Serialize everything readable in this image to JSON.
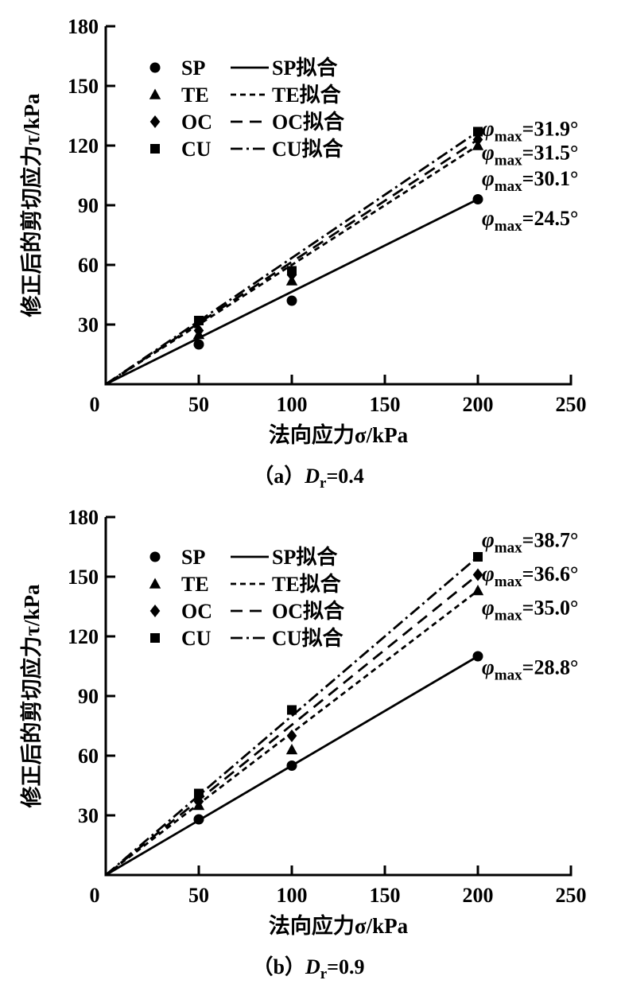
{
  "figure": {
    "background": "#ffffff",
    "ink": "#000000"
  },
  "chart_data": [
    {
      "type": "scatter",
      "panel": "a",
      "caption": {
        "prefix": "（a）",
        "variable": "D",
        "variable_subscript": "r",
        "rest": "=0.4"
      },
      "xlabel": "法向应力σ/kPa",
      "ylabel": "修正后的剪切应力τ/kPa",
      "xlim": [
        0,
        250
      ],
      "ylim": [
        0,
        180
      ],
      "xticks": [
        50,
        100,
        150,
        200,
        250
      ],
      "yticks": [
        30,
        60,
        90,
        120,
        150,
        180
      ],
      "origin_label": "0",
      "grid": false,
      "legend_position": "upper-left-inside",
      "annotation_symbol": "φ",
      "annotation_subscript": "max",
      "series": [
        {
          "name": "SP",
          "fit_label": "SP拟合",
          "marker": "circle",
          "line_style": "solid",
          "points": [
            [
              50,
              20
            ],
            [
              100,
              42
            ],
            [
              200,
              93
            ]
          ],
          "phi_max": "24.5°",
          "annotation_y": 84
        },
        {
          "name": "TE",
          "fit_label": "TE拟合",
          "marker": "triangle",
          "line_style": "short-dash",
          "points": [
            [
              50,
              25
            ],
            [
              100,
              52
            ],
            [
              200,
              120
            ]
          ],
          "phi_max": "30.1°",
          "annotation_y": 104
        },
        {
          "name": "OC",
          "fit_label": "OC拟合",
          "marker": "diamond",
          "line_style": "long-dash",
          "points": [
            [
              50,
              27
            ],
            [
              100,
              55
            ],
            [
              200,
              123
            ]
          ],
          "phi_max": "31.5°",
          "annotation_y": 117
        },
        {
          "name": "CU",
          "fit_label": "CU拟合",
          "marker": "square",
          "line_style": "dash-dot",
          "points": [
            [
              50,
              32
            ],
            [
              100,
              57
            ],
            [
              200,
              127
            ]
          ],
          "phi_max": "31.9°",
          "annotation_y": 129
        }
      ]
    },
    {
      "type": "scatter",
      "panel": "b",
      "caption": {
        "prefix": "（b）",
        "variable": "D",
        "variable_subscript": "r",
        "rest": "=0.9"
      },
      "xlabel": "法向应力σ/kPa",
      "ylabel": "修正后的剪切应力τ/kPa",
      "xlim": [
        0,
        250
      ],
      "ylim": [
        0,
        180
      ],
      "xticks": [
        50,
        100,
        150,
        200,
        250
      ],
      "yticks": [
        30,
        60,
        90,
        120,
        150,
        180
      ],
      "origin_label": "0",
      "grid": false,
      "legend_position": "upper-left-inside",
      "annotation_symbol": "φ",
      "annotation_subscript": "max",
      "series": [
        {
          "name": "SP",
          "fit_label": "SP拟合",
          "marker": "circle",
          "line_style": "solid",
          "points": [
            [
              50,
              28
            ],
            [
              100,
              55
            ],
            [
              200,
              110
            ]
          ],
          "phi_max": "28.8°",
          "annotation_y": 105
        },
        {
          "name": "TE",
          "fit_label": "TE拟合",
          "marker": "triangle",
          "line_style": "short-dash",
          "points": [
            [
              50,
              35
            ],
            [
              100,
              63
            ],
            [
              200,
              143
            ]
          ],
          "phi_max": "35.0°",
          "annotation_y": 135
        },
        {
          "name": "OC",
          "fit_label": "OC拟合",
          "marker": "diamond",
          "line_style": "long-dash",
          "points": [
            [
              50,
              37
            ],
            [
              100,
              70
            ],
            [
              200,
              151
            ]
          ],
          "phi_max": "36.6°",
          "annotation_y": 152
        },
        {
          "name": "CU",
          "fit_label": "CU拟合",
          "marker": "square",
          "line_style": "dash-dot",
          "points": [
            [
              50,
              41
            ],
            [
              100,
              83
            ],
            [
              200,
              160
            ]
          ],
          "phi_max": "38.7°",
          "annotation_y": 169
        }
      ]
    }
  ]
}
